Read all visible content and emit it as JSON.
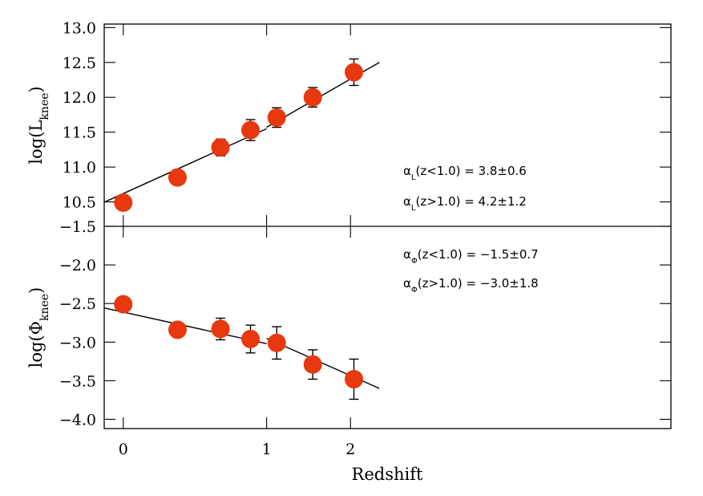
{
  "chart_data": {
    "type": "scatter",
    "xlabel": "Redshift",
    "x_axis": {
      "ticks": [
        0,
        1,
        2
      ],
      "tick_labels": [
        "0",
        "1",
        "2"
      ],
      "transform": "log10(1+z)",
      "range": [
        -0.04,
        1.15
      ]
    },
    "panels": [
      {
        "id": "top",
        "ylabel_main": "log(L",
        "ylabel_sub": "knee",
        "ylabel_close": ")",
        "ylim": [
          10.15,
          13.05
        ],
        "y_ticks": [
          10.5,
          11.0,
          11.5,
          12.0,
          12.5,
          13.0
        ],
        "y_tick_labels": [
          "10.5",
          "11.0",
          "11.5",
          "12.0",
          "12.5",
          "13.0"
        ],
        "marker_color": "#e8380d",
        "points": [
          {
            "z": 0.0,
            "y": 10.49,
            "err": 0
          },
          {
            "z": 0.3,
            "y": 10.85,
            "err": 0
          },
          {
            "z": 0.6,
            "y": 11.28,
            "err": 0.12
          },
          {
            "z": 0.85,
            "y": 11.53,
            "err": 0.15
          },
          {
            "z": 1.1,
            "y": 11.71,
            "err": 0.14
          },
          {
            "z": 1.5,
            "y": 12.0,
            "err": 0.14
          },
          {
            "z": 2.05,
            "y": 12.36,
            "err": 0.19
          }
        ],
        "fits": [
          {
            "z_from": -0.2,
            "z_to": 1.0,
            "y_from": 10.32,
            "y_to": 11.55
          },
          {
            "z_from": 1.0,
            "z_to": 2.45,
            "y_from": 11.57,
            "y_to": 12.5
          }
        ],
        "annotations": [
          {
            "alpha": "α",
            "sub": "L",
            "text": "(z<1.0)  =  3.8±0.6"
          },
          {
            "alpha": "α",
            "sub": "L",
            "text": "(z>1.0)  =  4.2±1.2"
          }
        ]
      },
      {
        "id": "bottom",
        "ylabel_main": "log(Φ",
        "ylabel_sub": "knee",
        "ylabel_close": ")",
        "ylim": [
          -4.12,
          -1.5
        ],
        "y_ticks": [
          -1.5,
          -2.0,
          -2.5,
          -3.0,
          -3.5,
          -4.0
        ],
        "y_tick_labels": [
          "−1.5",
          "−2.0",
          "−2.5",
          "−3.0",
          "−3.5",
          "−4.0"
        ],
        "marker_color": "#e8380d",
        "points": [
          {
            "z": 0.0,
            "y": -2.51,
            "err": 0
          },
          {
            "z": 0.3,
            "y": -2.84,
            "err": 0
          },
          {
            "z": 0.6,
            "y": -2.83,
            "err": 0.14
          },
          {
            "z": 0.85,
            "y": -2.96,
            "err": 0.18
          },
          {
            "z": 1.1,
            "y": -3.01,
            "err": 0.21
          },
          {
            "z": 1.5,
            "y": -3.29,
            "err": 0.19
          },
          {
            "z": 2.05,
            "y": -3.48,
            "err": 0.26
          }
        ],
        "fits": [
          {
            "z_from": -0.2,
            "z_to": 1.0,
            "y_from": -2.48,
            "y_to": -3.02
          },
          {
            "z_from": 1.0,
            "z_to": 2.45,
            "y_from": -2.95,
            "y_to": -3.6
          }
        ],
        "annotations": [
          {
            "alpha": "α",
            "sub": "Φ",
            "text": "(z<1.0)  =  −1.5±0.7"
          },
          {
            "alpha": "α",
            "sub": "Φ",
            "text": "(z>1.0)  =  −3.0±1.8"
          }
        ]
      }
    ]
  }
}
